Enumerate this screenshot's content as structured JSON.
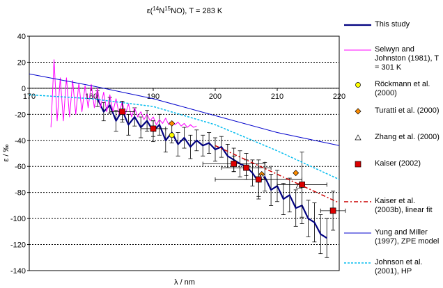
{
  "chart_data": {
    "type": "line",
    "title": [
      "ε(",
      "14",
      "N",
      "15",
      "NO), T = 283 K"
    ],
    "x_label": "λ / nm",
    "y_label": "ε / ‰",
    "xlim": [
      170,
      220
    ],
    "ylim": [
      -140,
      40
    ],
    "xticks": [
      170,
      180,
      190,
      200,
      210,
      220
    ],
    "yticks": [
      -140,
      -120,
      -100,
      -80,
      -60,
      -40,
      -20,
      0,
      20,
      40
    ],
    "grid": true,
    "legend": "right",
    "series": [
      {
        "name": "This study",
        "color": "#000080",
        "style": "line",
        "width": 2.2,
        "x": [
          181,
          182,
          183,
          184,
          185,
          186,
          187,
          188,
          189,
          190,
          191,
          192,
          193,
          194,
          195,
          196,
          197,
          198,
          199,
          200,
          201,
          202,
          203,
          204,
          205,
          206,
          207,
          208,
          209,
          210,
          211,
          212,
          213,
          214,
          215,
          216,
          217,
          218
        ],
        "values": [
          -8,
          -18,
          -13,
          -25,
          -17,
          -28,
          -22,
          -30,
          -25,
          -33,
          -28,
          -40,
          -34,
          -43,
          -38,
          -45,
          -40,
          -44,
          -42,
          -47,
          -45,
          -52,
          -55,
          -58,
          -60,
          -65,
          -72,
          -68,
          -78,
          -75,
          -85,
          -82,
          -92,
          -90,
          -100,
          -103,
          -112,
          -115
        ],
        "errors": [
          6,
          7,
          6,
          8,
          7,
          8,
          7,
          8,
          8,
          8,
          8,
          9,
          8,
          9,
          8,
          9,
          8,
          8,
          8,
          9,
          8,
          9,
          9,
          10,
          10,
          10,
          11,
          11,
          12,
          12,
          12,
          13,
          14,
          14,
          14,
          15,
          15,
          15
        ]
      },
      {
        "name": "Selwyn and Johnston (1981), T = 301 K",
        "color": "#ff00ff",
        "style": "line",
        "width": 1,
        "x": [
          173.5,
          174,
          174.5,
          175,
          175.5,
          176,
          176.5,
          177,
          177.5,
          178,
          178.5,
          179,
          179.5,
          180,
          180.5,
          181,
          181.5,
          182,
          182.5,
          183,
          183.5,
          184,
          184.5,
          185,
          185.5,
          186,
          186.5,
          187,
          187.5,
          188,
          188.5,
          189,
          189.5,
          190,
          190.5,
          191,
          191.5,
          192,
          192.5,
          193,
          193.5,
          194,
          194.5,
          195,
          195.5,
          196,
          196.5,
          197
        ],
        "values": [
          -30,
          22,
          -25,
          8,
          -25,
          8,
          -22,
          6,
          -20,
          4,
          -18,
          2,
          -15,
          3,
          -15,
          0,
          -15,
          -3,
          -18,
          -5,
          -18,
          -8,
          -20,
          -10,
          -20,
          -12,
          -22,
          -15,
          -22,
          -18,
          -24,
          -20,
          -25,
          -22,
          -28,
          -24,
          -27,
          -23,
          -28,
          -25,
          -28,
          -26,
          -29,
          -27,
          -30,
          -28,
          -30,
          -29
        ]
      },
      {
        "name": "Röckmann et al. (2000)",
        "color": "#ffff00",
        "style": "marker",
        "marker": "circle",
        "x": [
          193
        ],
        "values": [
          -36
        ]
      },
      {
        "name": "Turatti et al. (2000)",
        "color": "#ff8c00",
        "style": "marker",
        "marker": "diamond",
        "x": [
          193,
          207.5,
          213
        ],
        "values": [
          -27,
          -66,
          -65
        ]
      },
      {
        "name": "Zhang et al. (2000)",
        "color": "#ffffff",
        "style": "marker",
        "marker": "triangle",
        "x": [
          207.5,
          213.5
        ],
        "values": [
          -68,
          -75
        ]
      },
      {
        "name": "Kaiser (2002)",
        "color": "#dd0000",
        "style": "marker",
        "marker": "square",
        "x": [
          185,
          190,
          203,
          205,
          207,
          214,
          219
        ],
        "values": [
          -18,
          -31,
          -58,
          -61,
          -70,
          -74,
          -94
        ],
        "errors": [
          8,
          6,
          6,
          6,
          15,
          25,
          15
        ],
        "xerrors": [
          2,
          2,
          5,
          4,
          7,
          4,
          2
        ]
      },
      {
        "name": "Kaiser et al. (2003b), linear fit",
        "color": "#cc0000",
        "style": "line",
        "width": 1.5,
        "dash": "6,3,2,3",
        "x": [
          200,
          220
        ],
        "values": [
          -44,
          -88
        ]
      },
      {
        "name": "Yung and Miller (1997), ZPE model",
        "color": "#0000cc",
        "style": "line",
        "width": 1,
        "x": [
          170,
          180,
          190,
          200,
          210,
          220
        ],
        "values": [
          11,
          2,
          -8,
          -21,
          -34,
          -44
        ]
      },
      {
        "name": "Johnson et al. (2001), HP",
        "color": "#00bbee",
        "style": "line",
        "width": 1.5,
        "dash": "3,2",
        "x": [
          170,
          180,
          190,
          200,
          210,
          220
        ],
        "values": [
          -5,
          -8,
          -14,
          -28,
          -48,
          -70
        ]
      }
    ]
  }
}
